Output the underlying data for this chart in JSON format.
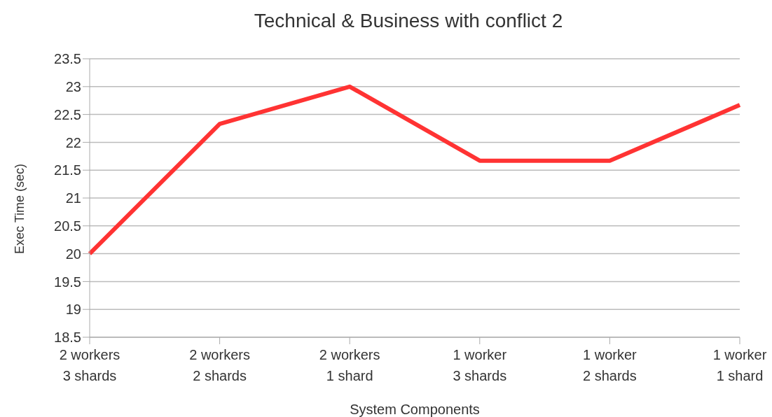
{
  "chart_data": {
    "type": "line",
    "title": "Technical & Business with conflict 2",
    "xlabel": "System Components",
    "ylabel": "Exec Time (sec)",
    "categories": [
      "2 workers\n3 shards",
      "2 workers\n2 shards",
      "2 workers\n1 shard",
      "1 worker\n3 shards",
      "1 worker\n2 shards",
      "1 worker\n1 shard"
    ],
    "series": [
      {
        "color": "#ff3333",
        "values": [
          20,
          22.33,
          23,
          21.67,
          21.67,
          22.67
        ]
      }
    ],
    "ylim": [
      18.5,
      23.5
    ],
    "yticks": [
      18.5,
      19,
      19.5,
      20,
      20.5,
      21,
      21.5,
      22,
      22.5,
      23,
      23.5
    ],
    "grid": "y",
    "legend": false,
    "marker": "none",
    "line_style": "solid"
  }
}
